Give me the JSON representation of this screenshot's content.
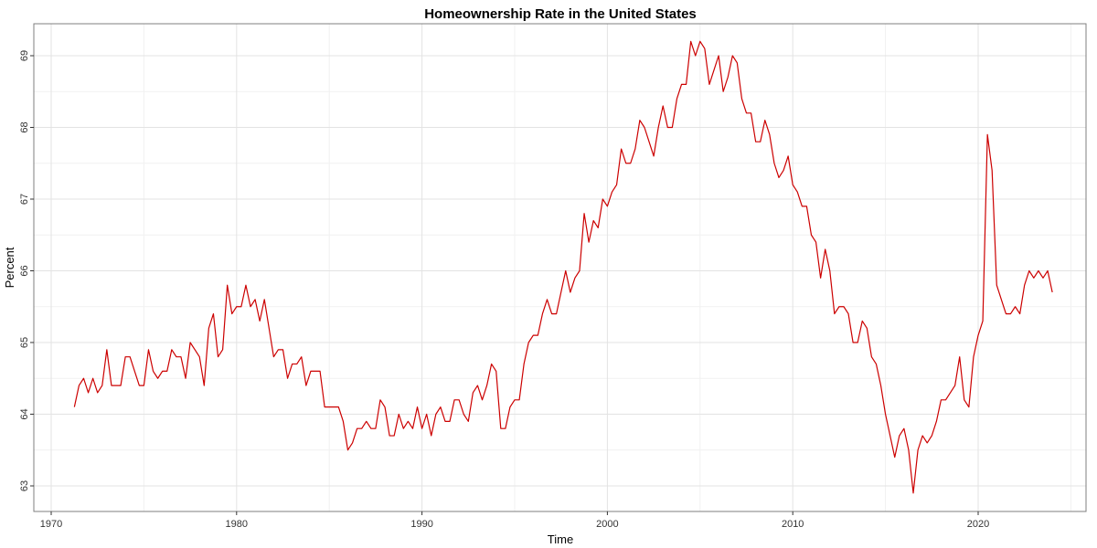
{
  "chart_data": {
    "type": "line",
    "title": "Homeownership Rate in the United States",
    "xlabel": "Time",
    "ylabel": "Percent",
    "xlim": [
      1969.3,
      1975.0
    ],
    "ylim": [
      62.6,
      69.45
    ],
    "x_ticks": [
      1970,
      1980,
      1990,
      2000,
      2010,
      2020
    ],
    "y_ticks": [
      63,
      64,
      65,
      66,
      67,
      68,
      69
    ],
    "grid": true,
    "legend": "none",
    "colors": {
      "series": "#cc0000",
      "grid": "#e3e3e3",
      "border": "#7f7f7f"
    },
    "series": [
      {
        "start": 1971.25,
        "step": 0.25,
        "values": [
          64.1,
          64.4,
          64.5,
          64.3,
          64.5,
          64.3,
          64.4,
          64.9,
          64.4,
          64.4,
          64.4,
          64.8,
          64.8,
          64.6,
          64.4,
          64.4,
          64.9,
          64.6,
          64.5,
          64.6,
          64.6,
          64.9,
          64.8,
          64.8,
          64.5,
          65.0,
          64.9,
          64.8,
          64.4,
          65.2,
          65.4,
          64.8,
          64.9,
          65.8,
          65.4,
          65.5,
          65.5,
          65.8,
          65.5,
          65.6,
          65.3,
          65.6,
          65.2,
          64.8,
          64.9,
          64.9,
          64.5,
          64.7,
          64.7,
          64.8,
          64.4,
          64.6,
          64.6,
          64.6,
          64.1,
          64.1,
          64.1,
          64.1,
          63.9,
          63.5,
          63.6,
          63.8,
          63.8,
          63.9,
          63.8,
          63.8,
          64.2,
          64.1,
          63.7,
          63.7,
          64.0,
          63.8,
          63.9,
          63.8,
          64.1,
          63.8,
          64.0,
          63.7,
          64.0,
          64.1,
          63.9,
          63.9,
          64.2,
          64.2,
          64.0,
          63.9,
          64.3,
          64.4,
          64.2,
          64.4,
          64.7,
          64.6,
          63.8,
          63.8,
          64.1,
          64.2,
          64.2,
          64.7,
          65.0,
          65.1,
          65.1,
          65.4,
          65.6,
          65.4,
          65.4,
          65.7,
          66.0,
          65.7,
          65.9,
          66.0,
          66.8,
          66.4,
          66.7,
          66.6,
          67.0,
          66.9,
          67.1,
          67.2,
          67.7,
          67.5,
          67.5,
          67.7,
          68.1,
          68.0,
          67.8,
          67.6,
          68.0,
          68.3,
          68.0,
          68.0,
          68.4,
          68.6,
          68.6,
          69.2,
          69.0,
          69.2,
          69.1,
          68.6,
          68.8,
          69.0,
          68.5,
          68.7,
          69.0,
          68.9,
          68.4,
          68.2,
          68.2,
          67.8,
          67.8,
          68.1,
          67.9,
          67.5,
          67.3,
          67.4,
          67.6,
          67.2,
          67.1,
          66.9,
          66.9,
          66.5,
          66.4,
          65.9,
          66.3,
          66.0,
          65.4,
          65.5,
          65.5,
          65.4,
          65.0,
          65.0,
          65.3,
          65.2,
          64.8,
          64.7,
          64.4,
          64.0,
          63.7,
          63.4,
          63.7,
          63.8,
          63.5,
          62.9,
          63.5,
          63.7,
          63.6,
          63.7,
          63.9,
          64.2,
          64.2,
          64.3,
          64.4,
          64.8,
          64.2,
          64.1,
          64.8,
          65.1,
          65.3,
          67.9,
          67.4,
          65.8,
          65.6,
          65.4,
          65.4,
          65.5,
          65.4,
          65.8,
          66.0,
          65.9,
          66.0,
          65.9,
          66.0,
          65.7
        ]
      }
    ]
  }
}
